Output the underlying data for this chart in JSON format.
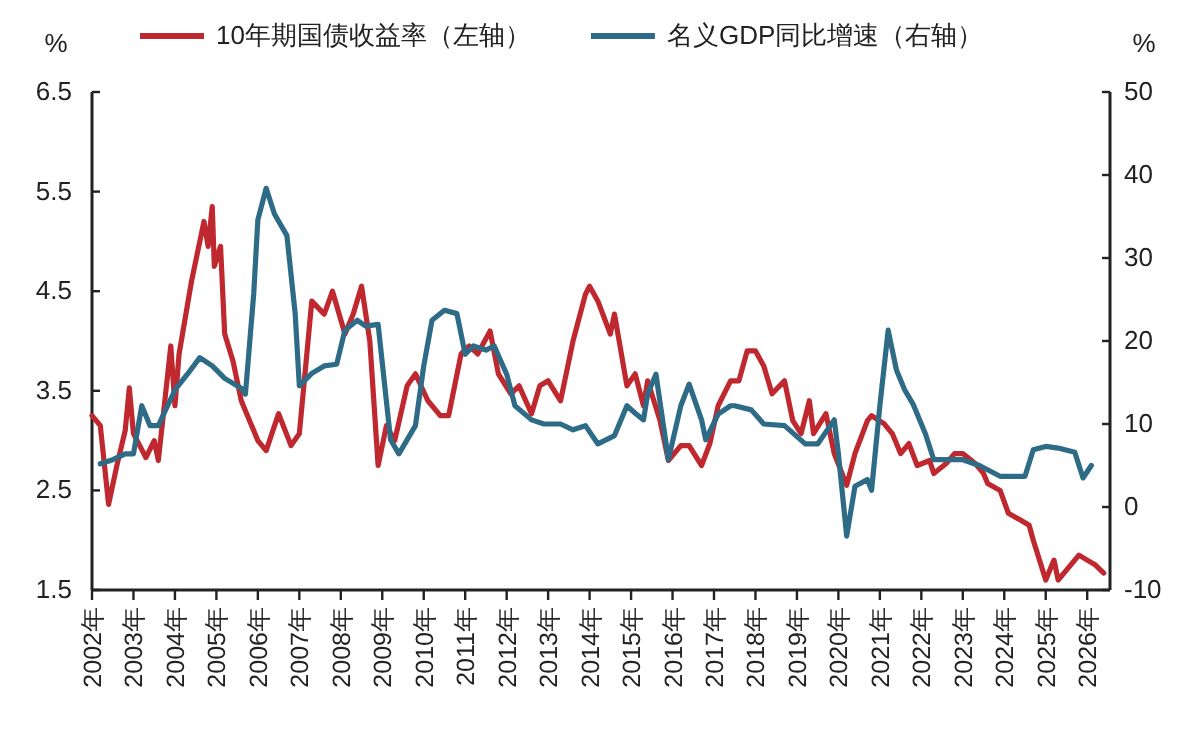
{
  "chart_data": {
    "type": "line",
    "ylabel": "%",
    "y2label": "%",
    "legend": "top",
    "grid": false,
    "xlim": [
      2002,
      2026.55
    ],
    "xticks": [
      {
        "value": 2002,
        "label": "2002年"
      },
      {
        "value": 2003,
        "label": "2003年"
      },
      {
        "value": 2004,
        "label": "2004年"
      },
      {
        "value": 2005,
        "label": "2005年"
      },
      {
        "value": 2006,
        "label": "2006年"
      },
      {
        "value": 2007,
        "label": "2007年"
      },
      {
        "value": 2008,
        "label": "2008年"
      },
      {
        "value": 2009,
        "label": "2009年"
      },
      {
        "value": 2010,
        "label": "2010年"
      },
      {
        "value": 2011,
        "label": "2011年"
      },
      {
        "value": 2012,
        "label": "2012年"
      },
      {
        "value": 2013,
        "label": "2013年"
      },
      {
        "value": 2014,
        "label": "2014年"
      },
      {
        "value": 2015,
        "label": "2015年"
      },
      {
        "value": 2016,
        "label": "2016年"
      },
      {
        "value": 2017,
        "label": "2017年"
      },
      {
        "value": 2018,
        "label": "2018年"
      },
      {
        "value": 2019,
        "label": "2019年"
      },
      {
        "value": 2020,
        "label": "2020年"
      },
      {
        "value": 2021,
        "label": "2021年"
      },
      {
        "value": 2022,
        "label": "2022年"
      },
      {
        "value": 2023,
        "label": "2023年"
      },
      {
        "value": 2024,
        "label": "2024年"
      },
      {
        "value": 2025,
        "label": "2025年"
      },
      {
        "value": 2026,
        "label": "2026年"
      }
    ],
    "ylim": [
      1.5,
      6.5
    ],
    "yticks": [
      1.5,
      2.5,
      3.5,
      4.5,
      5.5,
      6.5
    ],
    "y2lim": [
      -10,
      50
    ],
    "y2ticks": [
      -10,
      0,
      10,
      20,
      30,
      40,
      50
    ],
    "series": [
      {
        "name": "10年期国债收益率（左轴）",
        "color": "#c0282f",
        "x": [
          2002.0,
          2002.2,
          2002.4,
          2002.6,
          2002.8,
          2002.9,
          2003.0,
          2003.3,
          2003.5,
          2003.6,
          2003.9,
          2004.0,
          2004.1,
          2004.4,
          2004.7,
          2004.8,
          2004.9,
          2004.95,
          2005.1,
          2005.2,
          2005.4,
          2005.6,
          2005.8,
          2006.0,
          2006.2,
          2006.5,
          2006.8,
          2007.0,
          2007.3,
          2007.6,
          2007.8,
          2008.1,
          2008.3,
          2008.5,
          2008.7,
          2008.9,
          2009.1,
          2009.3,
          2009.6,
          2009.8,
          2010.1,
          2010.4,
          2010.6,
          2010.9,
          2011.1,
          2011.3,
          2011.6,
          2011.8,
          2012.1,
          2012.3,
          2012.6,
          2012.8,
          2013.0,
          2013.3,
          2013.6,
          2013.9,
          2014.0,
          2014.2,
          2014.5,
          2014.6,
          2014.9,
          2015.1,
          2015.3,
          2015.4,
          2015.7,
          2015.9,
          2016.2,
          2016.4,
          2016.7,
          2016.9,
          2017.1,
          2017.4,
          2017.6,
          2017.8,
          2018.0,
          2018.2,
          2018.4,
          2018.7,
          2018.9,
          2019.1,
          2019.3,
          2019.4,
          2019.7,
          2019.9,
          2020.2,
          2020.4,
          2020.7,
          2020.8,
          2021.1,
          2021.3,
          2021.5,
          2021.7,
          2021.9,
          2022.2,
          2022.3,
          2022.6,
          2022.8,
          2023.0,
          2023.3,
          2023.5,
          2023.6,
          2023.9,
          2024.1,
          2024.4,
          2024.6,
          2024.7,
          2025.0,
          2025.2,
          2025.3,
          2025.6,
          2025.8,
          2026.0,
          2026.2,
          2026.4
        ],
        "values": [
          3.25,
          3.15,
          2.36,
          2.75,
          3.1,
          3.53,
          3.07,
          2.83,
          3.0,
          2.8,
          3.95,
          3.35,
          3.87,
          4.6,
          5.2,
          4.95,
          5.35,
          4.75,
          4.95,
          4.07,
          3.8,
          3.4,
          3.2,
          3.0,
          2.9,
          3.27,
          2.95,
          3.07,
          4.4,
          4.27,
          4.5,
          4.07,
          4.27,
          4.55,
          4.0,
          2.75,
          3.15,
          3.0,
          3.55,
          3.67,
          3.4,
          3.25,
          3.25,
          3.87,
          3.95,
          3.87,
          4.1,
          3.67,
          3.47,
          3.55,
          3.27,
          3.55,
          3.6,
          3.4,
          4.0,
          4.47,
          4.55,
          4.4,
          4.07,
          4.27,
          3.55,
          3.67,
          3.35,
          3.6,
          3.2,
          2.8,
          2.95,
          2.95,
          2.75,
          2.97,
          3.35,
          3.6,
          3.6,
          3.9,
          3.9,
          3.75,
          3.47,
          3.6,
          3.2,
          3.07,
          3.4,
          3.07,
          3.27,
          2.87,
          2.55,
          2.87,
          3.2,
          3.25,
          3.17,
          3.07,
          2.87,
          2.97,
          2.75,
          2.8,
          2.67,
          2.77,
          2.87,
          2.87,
          2.77,
          2.67,
          2.57,
          2.5,
          2.27,
          2.2,
          2.15,
          2.0,
          1.6,
          1.8,
          1.6,
          1.75,
          1.85,
          1.8,
          1.75,
          1.67
        ]
      },
      {
        "name": "名义GDP同比增速（右轴）",
        "color": "#2e6b86",
        "axis": "y2",
        "x": [
          2002.2,
          2002.5,
          2002.8,
          2003.0,
          2003.2,
          2003.4,
          2003.6,
          2004.0,
          2004.3,
          2004.6,
          2004.9,
          2005.2,
          2005.6,
          2005.7,
          2005.9,
          2006.0,
          2006.2,
          2006.4,
          2006.7,
          2006.9,
          2007.0,
          2007.3,
          2007.6,
          2007.9,
          2008.1,
          2008.4,
          2008.6,
          2008.9,
          2009.2,
          2009.4,
          2009.8,
          2010.0,
          2010.2,
          2010.5,
          2010.8,
          2011.0,
          2011.2,
          2011.5,
          2011.7,
          2012.0,
          2012.2,
          2012.6,
          2012.9,
          2013.3,
          2013.6,
          2013.9,
          2014.2,
          2014.6,
          2014.9,
          2015.1,
          2015.3,
          2015.4,
          2015.6,
          2015.9,
          2016.2,
          2016.4,
          2016.7,
          2016.8,
          2017.1,
          2017.4,
          2017.5,
          2017.9,
          2018.2,
          2018.7,
          2019.2,
          2019.5,
          2019.9,
          2020.0,
          2020.2,
          2020.4,
          2020.7,
          2020.8,
          2021.0,
          2021.2,
          2021.4,
          2021.6,
          2021.8,
          2022.1,
          2022.3,
          2022.6,
          2023.0,
          2023.4,
          2023.9,
          2024.5,
          2024.7,
          2025.0,
          2025.3,
          2025.7,
          2025.9,
          2026.1
        ],
        "values": [
          5.2,
          5.7,
          6.4,
          6.4,
          12.2,
          9.8,
          9.8,
          14.1,
          16.0,
          18.0,
          17.0,
          15.5,
          14.3,
          13.6,
          25.7,
          34.6,
          38.4,
          35.3,
          32.7,
          23.3,
          14.6,
          16.1,
          17.0,
          17.2,
          21.3,
          22.5,
          21.8,
          22.0,
          8.1,
          6.4,
          9.8,
          17.0,
          22.5,
          23.7,
          23.3,
          18.4,
          19.4,
          18.9,
          19.4,
          16.0,
          12.2,
          10.5,
          10.0,
          10.0,
          9.3,
          9.8,
          7.6,
          8.6,
          12.2,
          11.3,
          10.5,
          13.6,
          16.0,
          5.7,
          12.2,
          14.8,
          10.5,
          8.1,
          11.2,
          12.2,
          12.2,
          11.7,
          10.0,
          9.8,
          7.6,
          7.6,
          10.5,
          6.4,
          -3.5,
          2.5,
          3.3,
          2.0,
          12.2,
          21.3,
          16.5,
          14.1,
          12.4,
          8.8,
          5.7,
          5.7,
          5.7,
          5.0,
          3.7,
          3.7,
          6.9,
          7.3,
          7.1,
          6.6,
          3.5,
          5.0
        ]
      }
    ]
  }
}
